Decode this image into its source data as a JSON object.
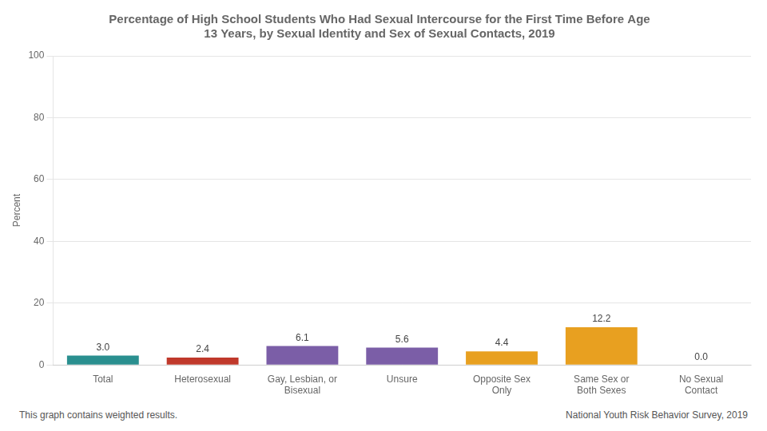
{
  "chart_data": {
    "type": "bar",
    "title": "Percentage of High School Students Who Had Sexual Intercourse for the First Time Before Age\n13 Years, by Sexual Identity and Sex of Sexual Contacts, 2019",
    "categories": [
      "Total",
      "Heterosexual",
      "Gay, Lesbian, or\nBisexual",
      "Unsure",
      "Opposite Sex\nOnly",
      "Same Sex or\nBoth Sexes",
      "No Sexual\nContact"
    ],
    "values": [
      3.0,
      2.4,
      6.1,
      5.6,
      4.4,
      12.2,
      0.0
    ],
    "value_labels": [
      "3.0",
      "2.4",
      "6.1",
      "5.6",
      "4.4",
      "12.2",
      "0.0"
    ],
    "colors": [
      "#2a8f8f",
      "#c0392b",
      "#7b5ea7",
      "#7b5ea7",
      "#e8a020",
      "#e8a020",
      "#e8a020"
    ],
    "ylabel": "Percent",
    "ylim": [
      0,
      100
    ],
    "yticks": [
      0,
      20,
      40,
      60,
      80,
      100
    ],
    "grid": true,
    "data_labels": true,
    "annotations": [
      "This graph contains weighted results.",
      "National Youth Risk Behavior Survey, 2019"
    ]
  }
}
